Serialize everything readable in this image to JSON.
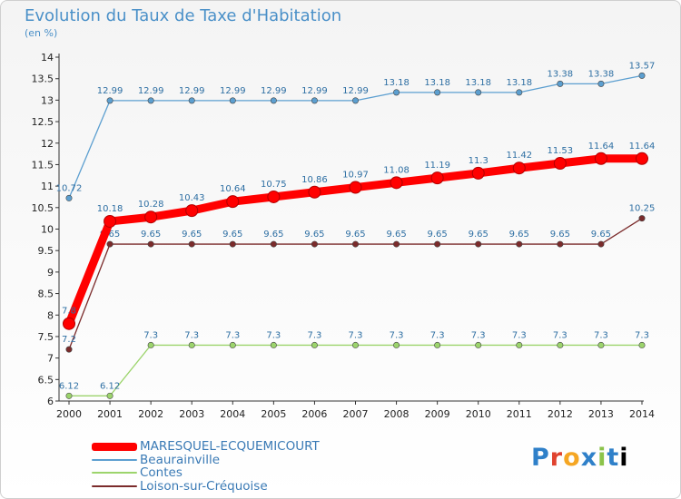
{
  "page": {
    "title": "Evolution du Taux de Taxe d'Habitation",
    "subtitle": "(en %)",
    "logo": "Proxiti"
  },
  "chart_data": {
    "type": "line",
    "title": "Evolution du Taux de Taxe d'Habitation",
    "ylabel": "(en %)",
    "xlabel": "",
    "ylim": [
      6,
      14
    ],
    "x": [
      2000,
      2001,
      2002,
      2003,
      2004,
      2005,
      2006,
      2007,
      2008,
      2009,
      2010,
      2011,
      2012,
      2013,
      2014
    ],
    "yticks": [
      6,
      6.5,
      7,
      7.5,
      8,
      8.5,
      9,
      9.5,
      10,
      10.5,
      11,
      11.5,
      12,
      12.5,
      13,
      13.5,
      14
    ],
    "legend_position": "bottom-left",
    "series": [
      {
        "name": "MARESQUEL-ECQUEMICOURT",
        "color": "#ff0000",
        "emphasis": true,
        "values": [
          7.8,
          10.18,
          10.28,
          10.43,
          10.64,
          10.75,
          10.86,
          10.97,
          11.08,
          11.19,
          11.3,
          11.42,
          11.53,
          11.64,
          11.64
        ]
      },
      {
        "name": "Beaurainville",
        "color": "#5c9fd0",
        "emphasis": false,
        "values": [
          10.72,
          12.99,
          12.99,
          12.99,
          12.99,
          12.99,
          12.99,
          12.99,
          13.18,
          13.18,
          13.18,
          13.18,
          13.38,
          13.38,
          13.57
        ]
      },
      {
        "name": "Contes",
        "color": "#9cd46c",
        "emphasis": false,
        "values": [
          6.12,
          6.12,
          7.3,
          7.3,
          7.3,
          7.3,
          7.3,
          7.3,
          7.3,
          7.3,
          7.3,
          7.3,
          7.3,
          7.3,
          7.3
        ]
      },
      {
        "name": "Loison-sur-Créquoise",
        "color": "#7b2b2b",
        "emphasis": false,
        "values": [
          7.2,
          9.65,
          9.65,
          9.65,
          9.65,
          9.65,
          9.65,
          9.65,
          9.65,
          9.65,
          9.65,
          9.65,
          9.65,
          9.65,
          10.25
        ]
      }
    ]
  }
}
